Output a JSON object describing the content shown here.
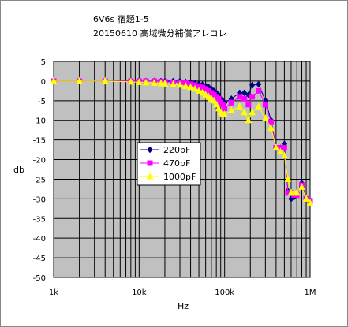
{
  "chart_data": {
    "type": "line",
    "title": [
      "6V6s 宿題1-5",
      "20150610 高域微分補償アレコレ"
    ],
    "xlabel": "Hz",
    "ylabel": "db",
    "x_scale": "log",
    "xlim": [
      1000,
      1000000
    ],
    "ylim": [
      -50,
      5
    ],
    "x_ticks": [
      1000,
      10000,
      100000,
      1000000
    ],
    "x_tick_labels": [
      "1k",
      "10k",
      "100k",
      "1M"
    ],
    "y_ticks": [
      5,
      0,
      -5,
      -10,
      -15,
      -20,
      -25,
      -30,
      -35,
      -40,
      -45,
      -50
    ],
    "y_tick_labels": [
      "5",
      "0",
      "-5",
      "-10",
      "-15",
      "-20",
      "-25",
      "-30",
      "-35",
      "-40",
      "-45",
      "-50"
    ],
    "grid": true,
    "legend_position": "center-left",
    "x": [
      1000,
      2000,
      4000,
      8000,
      10000,
      12000,
      15000,
      18000,
      20000,
      25000,
      30000,
      35000,
      40000,
      45000,
      50000,
      55000,
      60000,
      65000,
      70000,
      75000,
      80000,
      85000,
      90000,
      95000,
      100000,
      120000,
      150000,
      170000,
      190000,
      210000,
      250000,
      300000,
      350000,
      400000,
      450000,
      500000,
      550000,
      600000,
      650000,
      700000,
      800000,
      900000,
      1000000
    ],
    "series": [
      {
        "name": "220pF",
        "color": "#000080",
        "marker": "diamond",
        "values": [
          0,
          0,
          0,
          0,
          0,
          0,
          0,
          0,
          0,
          0,
          0,
          -0.2,
          -0.3,
          -0.5,
          -0.7,
          -0.9,
          -1.2,
          -1.5,
          -2.0,
          -2.5,
          -3.0,
          -3.5,
          -4.5,
          -5.0,
          -5.5,
          -4.5,
          -3.0,
          -3.0,
          -3.5,
          -1.0,
          -0.8,
          -5.0,
          -10.0,
          -17.0,
          -17.0,
          -16.0,
          -28.0,
          -30.0,
          -29.5,
          -29.0,
          -26.0,
          -30.0,
          -30.5
        ]
      },
      {
        "name": "470pF",
        "color": "#ff00ff",
        "marker": "square",
        "values": [
          0,
          0,
          0,
          0,
          0,
          0,
          0,
          -0.1,
          -0.2,
          -0.3,
          -0.3,
          -0.5,
          -0.8,
          -1.0,
          -1.3,
          -1.6,
          -2.0,
          -2.5,
          -3.0,
          -3.5,
          -4.0,
          -4.5,
          -5.5,
          -6.0,
          -7.0,
          -5.5,
          -4.0,
          -4.5,
          -6.0,
          -4.0,
          -2.5,
          -6.0,
          -10.5,
          -17.0,
          -17.0,
          -17.0,
          -28.5,
          -28.5,
          -29.0,
          -29.0,
          -26.5,
          -30.0,
          -30.5
        ]
      },
      {
        "name": "1000pF",
        "color": "#ffff00",
        "marker": "triangle",
        "values": [
          0,
          0,
          0,
          -0.2,
          -0.3,
          -0.4,
          -0.5,
          -0.6,
          -0.7,
          -0.8,
          -1.0,
          -1.3,
          -1.6,
          -2.0,
          -2.5,
          -3.0,
          -3.5,
          -4.0,
          -4.5,
          -5.0,
          -6.0,
          -7.0,
          -8.0,
          -8.5,
          -8.5,
          -7.5,
          -6.5,
          -8.0,
          -10.0,
          -8.0,
          -6.5,
          -9.5,
          -12.0,
          -17.0,
          -18.0,
          -19.0,
          -25.0,
          -28.5,
          -28.5,
          -28.5,
          -27.0,
          -30.0,
          -31.0
        ]
      }
    ]
  }
}
